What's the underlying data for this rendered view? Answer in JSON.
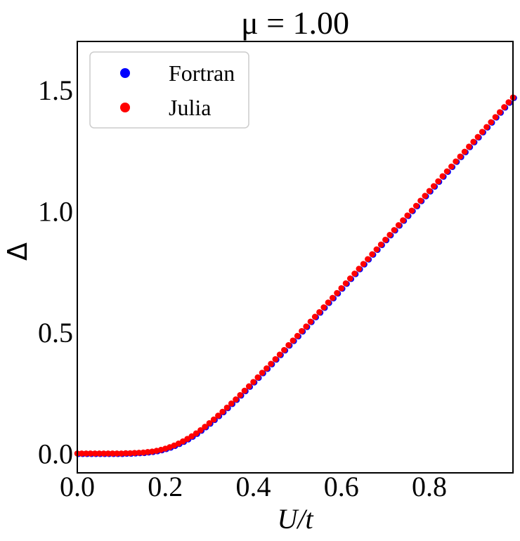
{
  "chart_data": {
    "type": "scatter",
    "title": "μ = 1.00",
    "xlabel": "U/t",
    "ylabel": "Δ",
    "xlim": [
      0.0,
      0.99
    ],
    "ylim": [
      -0.08,
      1.7
    ],
    "xticks": [
      0.0,
      0.2,
      0.4,
      0.6,
      0.8
    ],
    "xtick_labels": [
      "0.0",
      "0.2",
      "0.4",
      "0.6",
      "0.8"
    ],
    "yticks": [
      0.0,
      0.5,
      1.0,
      1.5
    ],
    "ytick_labels": [
      "0.0",
      "0.5",
      "1.0",
      "1.5"
    ],
    "grid": false,
    "legend_position": "top-left",
    "x": [
      0.0,
      0.01,
      0.02,
      0.03,
      0.04,
      0.05,
      0.06,
      0.07,
      0.08,
      0.09,
      0.1,
      0.11,
      0.12,
      0.13,
      0.14,
      0.15,
      0.16,
      0.17,
      0.18,
      0.19,
      0.2,
      0.21,
      0.22,
      0.23,
      0.24,
      0.25,
      0.26,
      0.27,
      0.28,
      0.29,
      0.3,
      0.31,
      0.32,
      0.33,
      0.34,
      0.35,
      0.36,
      0.37,
      0.38,
      0.39,
      0.4,
      0.41,
      0.42,
      0.43,
      0.44,
      0.45,
      0.46,
      0.47,
      0.48,
      0.49,
      0.5,
      0.51,
      0.52,
      0.53,
      0.54,
      0.55,
      0.56,
      0.57,
      0.58,
      0.59,
      0.6,
      0.61,
      0.62,
      0.63,
      0.64,
      0.65,
      0.66,
      0.67,
      0.68,
      0.69,
      0.7,
      0.71,
      0.72,
      0.73,
      0.74,
      0.75,
      0.76,
      0.77,
      0.78,
      0.79,
      0.8,
      0.81,
      0.82,
      0.83,
      0.84,
      0.85,
      0.86,
      0.87,
      0.88,
      0.89,
      0.9,
      0.91,
      0.92,
      0.93,
      0.94,
      0.95,
      0.96,
      0.97,
      0.98,
      0.99
    ],
    "series": [
      {
        "name": "Fortran",
        "color": "#0000ff",
        "values": [
          0.0,
          0.0,
          0.0,
          0.0,
          0.0,
          0.0,
          0.0,
          0.0,
          0.0,
          0.0,
          0.0,
          0.001,
          0.001,
          0.002,
          0.003,
          0.004,
          0.006,
          0.008,
          0.011,
          0.015,
          0.02,
          0.026,
          0.033,
          0.041,
          0.05,
          0.06,
          0.071,
          0.083,
          0.096,
          0.11,
          0.125,
          0.14,
          0.156,
          0.172,
          0.189,
          0.206,
          0.223,
          0.241,
          0.259,
          0.277,
          0.295,
          0.314,
          0.333,
          0.351,
          0.37,
          0.389,
          0.408,
          0.427,
          0.447,
          0.466,
          0.485,
          0.505,
          0.524,
          0.544,
          0.564,
          0.583,
          0.603,
          0.623,
          0.642,
          0.662,
          0.682,
          0.702,
          0.722,
          0.742,
          0.762,
          0.782,
          0.802,
          0.822,
          0.842,
          0.862,
          0.882,
          0.902,
          0.922,
          0.942,
          0.962,
          0.982,
          1.002,
          1.022,
          1.043,
          1.063,
          1.083,
          1.103,
          1.123,
          1.144,
          1.164,
          1.184,
          1.205,
          1.225,
          1.245,
          1.266,
          1.286,
          1.306,
          1.327,
          1.347,
          1.367,
          1.388,
          1.408,
          1.429,
          1.449,
          1.469
        ]
      },
      {
        "name": "Julia",
        "color": "#ff0000",
        "values": [
          0.0,
          0.0,
          0.0,
          0.0,
          0.0,
          0.0,
          0.0,
          0.0,
          0.0,
          0.0,
          0.0,
          0.001,
          0.001,
          0.002,
          0.003,
          0.004,
          0.006,
          0.008,
          0.011,
          0.015,
          0.02,
          0.026,
          0.033,
          0.041,
          0.05,
          0.06,
          0.071,
          0.083,
          0.096,
          0.11,
          0.125,
          0.14,
          0.156,
          0.172,
          0.189,
          0.206,
          0.223,
          0.241,
          0.259,
          0.277,
          0.295,
          0.314,
          0.333,
          0.351,
          0.37,
          0.389,
          0.408,
          0.427,
          0.447,
          0.466,
          0.485,
          0.505,
          0.524,
          0.544,
          0.564,
          0.583,
          0.603,
          0.623,
          0.642,
          0.662,
          0.682,
          0.702,
          0.722,
          0.742,
          0.762,
          0.782,
          0.802,
          0.822,
          0.842,
          0.862,
          0.882,
          0.902,
          0.922,
          0.942,
          0.962,
          0.982,
          1.002,
          1.022,
          1.043,
          1.063,
          1.083,
          1.103,
          1.123,
          1.144,
          1.164,
          1.184,
          1.205,
          1.225,
          1.245,
          1.266,
          1.286,
          1.306,
          1.327,
          1.347,
          1.367,
          1.388,
          1.408,
          1.429,
          1.449,
          1.469
        ]
      }
    ]
  }
}
